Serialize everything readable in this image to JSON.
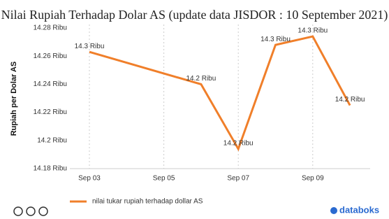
{
  "chart_data": {
    "type": "line",
    "title": "Nilai Rupiah Terhadap Dolar AS (update data JISDOR : 10 September 2021)",
    "y_label": "Rupiah per Dolar AS",
    "x": [
      "Sep 03",
      "Sep 06",
      "Sep 07",
      "Sep 08",
      "Sep 09",
      "Sep 10"
    ],
    "xticks": [
      "Sep 03",
      "Sep 05",
      "Sep 07",
      "Sep 09"
    ],
    "series": [
      {
        "name": "nilai tukar rupiah terhadap dollar AS",
        "color": "#f07f2a",
        "values": [
          14.263,
          14.24,
          14.194,
          14.268,
          14.274,
          14.225
        ],
        "value_labels": [
          "14.3 Ribu",
          "14.2 Ribu",
          "14.2 Ribu",
          "14.3 Ribu",
          "14.3 Ribu",
          "14.2 Ribu"
        ]
      }
    ],
    "ylim": [
      14.18,
      14.28
    ],
    "yticks": [
      {
        "value": 14.18,
        "label": "14.18 Ribu"
      },
      {
        "value": 14.2,
        "label": "14.2 Ribu"
      },
      {
        "value": 14.22,
        "label": "14.22 Ribu"
      },
      {
        "value": 14.24,
        "label": "14.24 Ribu"
      },
      {
        "value": 14.26,
        "label": "14.26 Ribu"
      },
      {
        "value": 14.28,
        "label": "14.28 Ribu"
      }
    ],
    "grid": true
  },
  "brand": "databoks"
}
